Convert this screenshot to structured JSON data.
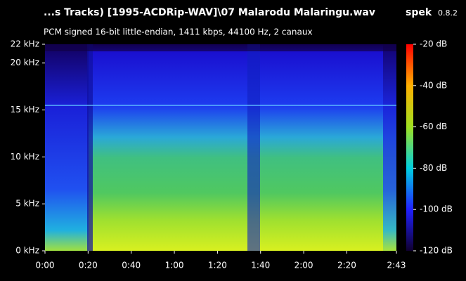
{
  "header": {
    "file": "...s Tracks) [1995-ACDRip-WAV]\\07 Malarodu Malaringu.wav",
    "app": "spek",
    "version": "0.8.2",
    "info": "PCM signed 16-bit little-endian, 1411 kbps, 44100 Hz, 2 canaux"
  },
  "spectrogram": {
    "ylim": [
      0,
      22
    ],
    "yticks": [
      {
        "value": 0,
        "label": "0 kHz"
      },
      {
        "value": 5,
        "label": "5 kHz"
      },
      {
        "value": 10,
        "label": "10 kHz"
      },
      {
        "value": 15,
        "label": "15 kHz"
      },
      {
        "value": 20,
        "label": "20 kHz"
      },
      {
        "value": 22,
        "label": "22 kHz"
      }
    ],
    "xlim": [
      0,
      163
    ],
    "xticks": [
      {
        "value": 0,
        "label": "0:00"
      },
      {
        "value": 20,
        "label": "0:20"
      },
      {
        "value": 40,
        "label": "0:40"
      },
      {
        "value": 60,
        "label": "1:00"
      },
      {
        "value": 80,
        "label": "1:20"
      },
      {
        "value": 100,
        "label": "1:40"
      },
      {
        "value": 120,
        "label": "2:00"
      },
      {
        "value": 140,
        "label": "2:20"
      },
      {
        "value": 163,
        "label": "2:43"
      }
    ]
  },
  "colorbar": {
    "lim": [
      -120,
      -20
    ],
    "ticks": [
      {
        "value": -20,
        "label": "-20 dB"
      },
      {
        "value": -40,
        "label": "-40 dB"
      },
      {
        "value": -60,
        "label": "-60 dB"
      },
      {
        "value": -80,
        "label": "-80 dB"
      },
      {
        "value": -100,
        "label": "-100 dB"
      },
      {
        "value": -120,
        "label": "-120 dB"
      }
    ]
  }
}
